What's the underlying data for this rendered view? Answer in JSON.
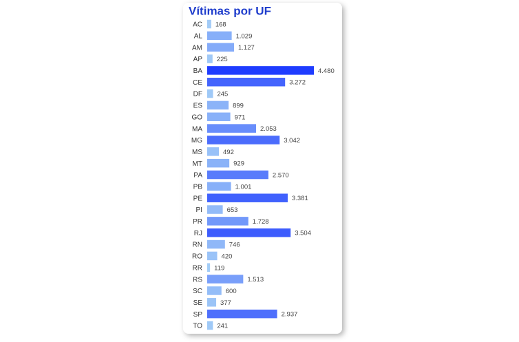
{
  "chart_data": {
    "type": "bar",
    "orientation": "horizontal",
    "title": "Vítimas por UF",
    "categories": [
      "AC",
      "AL",
      "AM",
      "AP",
      "BA",
      "CE",
      "DF",
      "ES",
      "GO",
      "MA",
      "MG",
      "MS",
      "MT",
      "PA",
      "PB",
      "PE",
      "PI",
      "PR",
      "RJ",
      "RN",
      "RO",
      "RR",
      "RS",
      "SC",
      "SE",
      "SP",
      "TO"
    ],
    "values": [
      168,
      1029,
      1127,
      225,
      4480,
      3272,
      245,
      899,
      971,
      2053,
      3042,
      492,
      929,
      2570,
      1001,
      3381,
      653,
      1728,
      3504,
      746,
      420,
      119,
      1513,
      600,
      377,
      2937,
      241
    ],
    "value_labels": [
      "168",
      "1.029",
      "1.127",
      "225",
      "4.480",
      "3.272",
      "245",
      "899",
      "971",
      "2.053",
      "3.042",
      "492",
      "929",
      "2.570",
      "1.001",
      "3.381",
      "653",
      "1.728",
      "3.504",
      "746",
      "420",
      "119",
      "1.513",
      "600",
      "377",
      "2.937",
      "241"
    ],
    "color_scale": {
      "low": "#a3cdf7",
      "high": "#1f3cff"
    }
  }
}
